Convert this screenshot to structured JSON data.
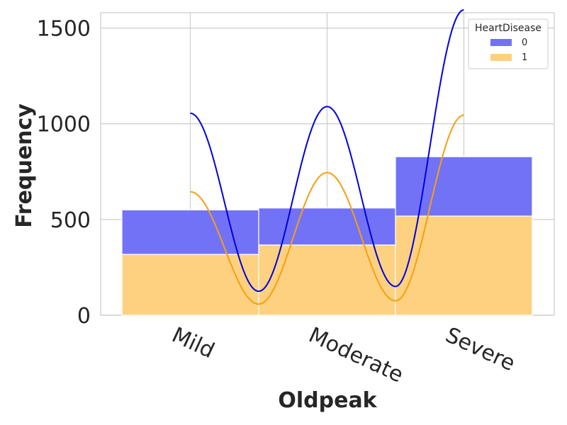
{
  "chart_data": {
    "type": "bar",
    "subtype": "stacked-histogram-with-kde",
    "xlabel": "Oldpeak",
    "ylabel": "Frequency",
    "categories": [
      "Mild",
      "Moderate",
      "Severe"
    ],
    "ylim": [
      0,
      1580
    ],
    "y_ticks": [
      0,
      500,
      1000,
      1500
    ],
    "grid": true,
    "legend": {
      "title": "HeartDisease",
      "placement": "top-right"
    },
    "series": [
      {
        "name": "0",
        "color": "#7272f7",
        "kde_color": "#0000dd",
        "values": [
          232,
          193,
          310
        ],
        "kde_peaks": [
          1055,
          1090,
          1595
        ],
        "kde_troughs": [
          125,
          150
        ]
      },
      {
        "name": "1",
        "color": "#fdd17f",
        "kde_color": "#f5a00f",
        "values": [
          318,
          367,
          518
        ],
        "kde_peaks": [
          645,
          745,
          1045
        ],
        "kde_troughs": [
          58,
          75
        ]
      }
    ]
  }
}
